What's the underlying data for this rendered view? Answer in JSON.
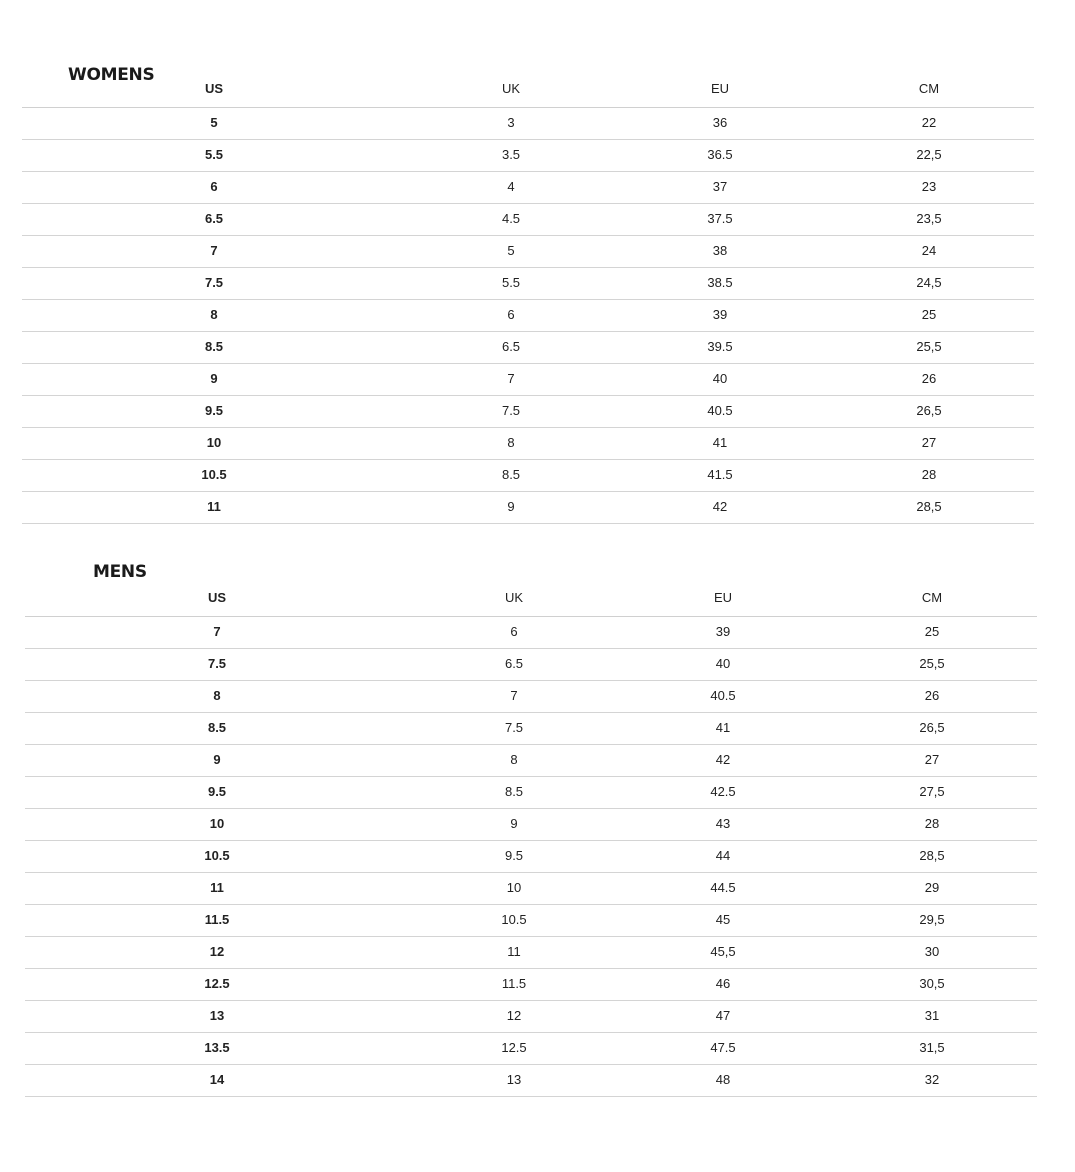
{
  "womens": {
    "title": "WOMENS",
    "columns": [
      "US",
      "UK",
      "EU",
      "CM"
    ],
    "rows": [
      [
        "5",
        "3",
        "36",
        "22"
      ],
      [
        "5.5",
        "3.5",
        "36.5",
        "22,5"
      ],
      [
        "6",
        "4",
        "37",
        "23"
      ],
      [
        "6.5",
        "4.5",
        "37.5",
        "23,5"
      ],
      [
        "7",
        "5",
        "38",
        "24"
      ],
      [
        "7.5",
        "5.5",
        "38.5",
        "24,5"
      ],
      [
        "8",
        "6",
        "39",
        "25"
      ],
      [
        "8.5",
        "6.5",
        "39.5",
        "25,5"
      ],
      [
        "9",
        "7",
        "40",
        "26"
      ],
      [
        "9.5",
        "7.5",
        "40.5",
        "26,5"
      ],
      [
        "10",
        "8",
        "41",
        "27"
      ],
      [
        "10.5",
        "8.5",
        "41.5",
        "28"
      ],
      [
        "11",
        "9",
        "42",
        "28,5"
      ]
    ]
  },
  "mens": {
    "title": "MENS",
    "columns": [
      "US",
      "UK",
      "EU",
      "CM"
    ],
    "rows": [
      [
        "7",
        "6",
        "39",
        "25"
      ],
      [
        "7.5",
        "6.5",
        "40",
        "25,5"
      ],
      [
        "8",
        "7",
        "40.5",
        "26"
      ],
      [
        "8.5",
        "7.5",
        "41",
        "26,5"
      ],
      [
        "9",
        "8",
        "42",
        "27"
      ],
      [
        "9.5",
        "8.5",
        "42.5",
        "27,5"
      ],
      [
        "10",
        "9",
        "43",
        "28"
      ],
      [
        "10.5",
        "9.5",
        "44",
        "28,5"
      ],
      [
        "11",
        "10",
        "44.5",
        "29"
      ],
      [
        "11.5",
        "10.5",
        "45",
        "29,5"
      ],
      [
        "12",
        "11",
        "45,5",
        "30"
      ],
      [
        "12.5",
        "11.5",
        "46",
        "30,5"
      ],
      [
        "13",
        "12",
        "47",
        "31"
      ],
      [
        "13.5",
        "12.5",
        "47.5",
        "31,5"
      ],
      [
        "14",
        "13",
        "48",
        "32"
      ]
    ]
  }
}
